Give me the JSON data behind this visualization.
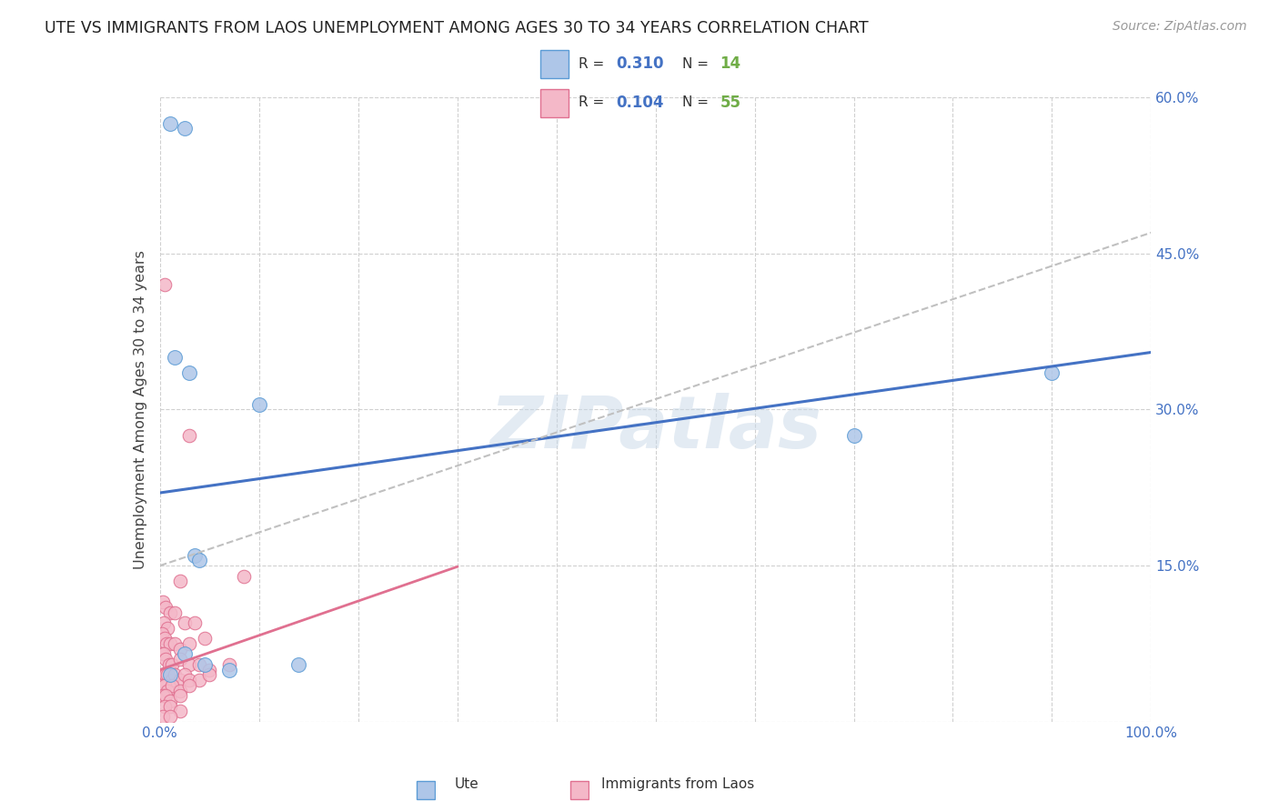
{
  "title": "UTE VS IMMIGRANTS FROM LAOS UNEMPLOYMENT AMONG AGES 30 TO 34 YEARS CORRELATION CHART",
  "source": "Source: ZipAtlas.com",
  "ylabel": "Unemployment Among Ages 30 to 34 years",
  "xlim": [
    0,
    100
  ],
  "ylim": [
    0,
    60
  ],
  "yticks": [
    0,
    15,
    30,
    45,
    60
  ],
  "ytick_labels": [
    "",
    "15.0%",
    "30.0%",
    "45.0%",
    "60.0%"
  ],
  "xtick_labels_show": [
    "0.0%",
    "100.0%"
  ],
  "background_color": "#ffffff",
  "watermark": "ZIPatlas",
  "ute_color": "#aec6e8",
  "ute_edge_color": "#5b9bd5",
  "laos_color": "#f4b8c8",
  "laos_edge_color": "#e07090",
  "ute_R": 0.31,
  "ute_N": 14,
  "laos_R": 0.104,
  "laos_N": 55,
  "legend_R_color": "#4472c4",
  "legend_N_color": "#70ad47",
  "ute_line_color": "#4472c4",
  "laos_line_color": "#e07090",
  "dashed_line_color": "#c0c0c0",
  "grid_color": "#d0d0d0",
  "ute_points": [
    [
      1.0,
      57.5
    ],
    [
      2.5,
      57.0
    ],
    [
      1.5,
      35.0
    ],
    [
      3.0,
      33.5
    ],
    [
      10.0,
      30.5
    ],
    [
      70.0,
      27.5
    ],
    [
      90.0,
      33.5
    ],
    [
      3.5,
      16.0
    ],
    [
      4.0,
      15.5
    ],
    [
      2.5,
      6.5
    ],
    [
      4.5,
      5.5
    ],
    [
      7.0,
      5.0
    ],
    [
      14.0,
      5.5
    ],
    [
      1.0,
      4.5
    ]
  ],
  "laos_points": [
    [
      0.5,
      42.0
    ],
    [
      3.0,
      27.5
    ],
    [
      2.0,
      13.5
    ],
    [
      8.5,
      14.0
    ],
    [
      0.3,
      11.5
    ],
    [
      0.6,
      11.0
    ],
    [
      1.0,
      10.5
    ],
    [
      1.5,
      10.5
    ],
    [
      0.4,
      9.5
    ],
    [
      0.8,
      9.0
    ],
    [
      2.5,
      9.5
    ],
    [
      3.5,
      9.5
    ],
    [
      0.2,
      8.5
    ],
    [
      0.5,
      8.0
    ],
    [
      0.7,
      7.5
    ],
    [
      1.0,
      7.5
    ],
    [
      1.5,
      7.5
    ],
    [
      2.0,
      7.0
    ],
    [
      3.0,
      7.5
    ],
    [
      4.5,
      8.0
    ],
    [
      0.2,
      6.5
    ],
    [
      0.4,
      6.5
    ],
    [
      0.6,
      6.0
    ],
    [
      0.9,
      5.5
    ],
    [
      1.2,
      5.5
    ],
    [
      2.0,
      6.0
    ],
    [
      3.0,
      5.5
    ],
    [
      4.0,
      5.5
    ],
    [
      5.0,
      5.0
    ],
    [
      7.0,
      5.5
    ],
    [
      0.3,
      4.5
    ],
    [
      0.6,
      4.5
    ],
    [
      0.8,
      4.5
    ],
    [
      1.2,
      4.0
    ],
    [
      1.5,
      4.5
    ],
    [
      2.0,
      4.0
    ],
    [
      2.5,
      4.5
    ],
    [
      3.0,
      4.0
    ],
    [
      4.0,
      4.0
    ],
    [
      5.0,
      4.5
    ],
    [
      0.2,
      3.5
    ],
    [
      0.5,
      3.5
    ],
    [
      0.8,
      3.0
    ],
    [
      1.2,
      3.5
    ],
    [
      2.0,
      3.0
    ],
    [
      3.0,
      3.5
    ],
    [
      0.3,
      2.5
    ],
    [
      0.6,
      2.5
    ],
    [
      1.0,
      2.0
    ],
    [
      2.0,
      2.5
    ],
    [
      0.5,
      1.5
    ],
    [
      1.0,
      1.5
    ],
    [
      2.0,
      1.0
    ],
    [
      0.3,
      0.5
    ],
    [
      1.0,
      0.5
    ]
  ]
}
